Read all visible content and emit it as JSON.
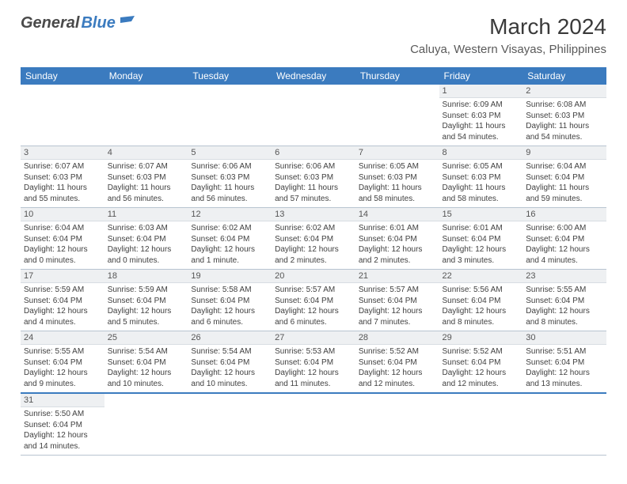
{
  "brand": {
    "part1": "General",
    "part2": "Blue"
  },
  "title": "March 2024",
  "location": "Caluya, Western Visayas, Philippines",
  "colors": {
    "header_bg": "#3b7bbf",
    "header_text": "#ffffff",
    "daynum_bg": "#eef0f2",
    "cell_border": "#b8c4d0",
    "text": "#3f3f3f",
    "title": "#3a3a3a"
  },
  "weekdays": [
    "Sunday",
    "Monday",
    "Tuesday",
    "Wednesday",
    "Thursday",
    "Friday",
    "Saturday"
  ],
  "weeks": [
    [
      null,
      null,
      null,
      null,
      null,
      {
        "d": "1",
        "sr": "6:09 AM",
        "ss": "6:03 PM",
        "dl": "11 hours and 54 minutes."
      },
      {
        "d": "2",
        "sr": "6:08 AM",
        "ss": "6:03 PM",
        "dl": "11 hours and 54 minutes."
      }
    ],
    [
      {
        "d": "3",
        "sr": "6:07 AM",
        "ss": "6:03 PM",
        "dl": "11 hours and 55 minutes."
      },
      {
        "d": "4",
        "sr": "6:07 AM",
        "ss": "6:03 PM",
        "dl": "11 hours and 56 minutes."
      },
      {
        "d": "5",
        "sr": "6:06 AM",
        "ss": "6:03 PM",
        "dl": "11 hours and 56 minutes."
      },
      {
        "d": "6",
        "sr": "6:06 AM",
        "ss": "6:03 PM",
        "dl": "11 hours and 57 minutes."
      },
      {
        "d": "7",
        "sr": "6:05 AM",
        "ss": "6:03 PM",
        "dl": "11 hours and 58 minutes."
      },
      {
        "d": "8",
        "sr": "6:05 AM",
        "ss": "6:03 PM",
        "dl": "11 hours and 58 minutes."
      },
      {
        "d": "9",
        "sr": "6:04 AM",
        "ss": "6:04 PM",
        "dl": "11 hours and 59 minutes."
      }
    ],
    [
      {
        "d": "10",
        "sr": "6:04 AM",
        "ss": "6:04 PM",
        "dl": "12 hours and 0 minutes."
      },
      {
        "d": "11",
        "sr": "6:03 AM",
        "ss": "6:04 PM",
        "dl": "12 hours and 0 minutes."
      },
      {
        "d": "12",
        "sr": "6:02 AM",
        "ss": "6:04 PM",
        "dl": "12 hours and 1 minute."
      },
      {
        "d": "13",
        "sr": "6:02 AM",
        "ss": "6:04 PM",
        "dl": "12 hours and 2 minutes."
      },
      {
        "d": "14",
        "sr": "6:01 AM",
        "ss": "6:04 PM",
        "dl": "12 hours and 2 minutes."
      },
      {
        "d": "15",
        "sr": "6:01 AM",
        "ss": "6:04 PM",
        "dl": "12 hours and 3 minutes."
      },
      {
        "d": "16",
        "sr": "6:00 AM",
        "ss": "6:04 PM",
        "dl": "12 hours and 4 minutes."
      }
    ],
    [
      {
        "d": "17",
        "sr": "5:59 AM",
        "ss": "6:04 PM",
        "dl": "12 hours and 4 minutes."
      },
      {
        "d": "18",
        "sr": "5:59 AM",
        "ss": "6:04 PM",
        "dl": "12 hours and 5 minutes."
      },
      {
        "d": "19",
        "sr": "5:58 AM",
        "ss": "6:04 PM",
        "dl": "12 hours and 6 minutes."
      },
      {
        "d": "20",
        "sr": "5:57 AM",
        "ss": "6:04 PM",
        "dl": "12 hours and 6 minutes."
      },
      {
        "d": "21",
        "sr": "5:57 AM",
        "ss": "6:04 PM",
        "dl": "12 hours and 7 minutes."
      },
      {
        "d": "22",
        "sr": "5:56 AM",
        "ss": "6:04 PM",
        "dl": "12 hours and 8 minutes."
      },
      {
        "d": "23",
        "sr": "5:55 AM",
        "ss": "6:04 PM",
        "dl": "12 hours and 8 minutes."
      }
    ],
    [
      {
        "d": "24",
        "sr": "5:55 AM",
        "ss": "6:04 PM",
        "dl": "12 hours and 9 minutes."
      },
      {
        "d": "25",
        "sr": "5:54 AM",
        "ss": "6:04 PM",
        "dl": "12 hours and 10 minutes."
      },
      {
        "d": "26",
        "sr": "5:54 AM",
        "ss": "6:04 PM",
        "dl": "12 hours and 10 minutes."
      },
      {
        "d": "27",
        "sr": "5:53 AM",
        "ss": "6:04 PM",
        "dl": "12 hours and 11 minutes."
      },
      {
        "d": "28",
        "sr": "5:52 AM",
        "ss": "6:04 PM",
        "dl": "12 hours and 12 minutes."
      },
      {
        "d": "29",
        "sr": "5:52 AM",
        "ss": "6:04 PM",
        "dl": "12 hours and 12 minutes."
      },
      {
        "d": "30",
        "sr": "5:51 AM",
        "ss": "6:04 PM",
        "dl": "12 hours and 13 minutes."
      }
    ],
    [
      {
        "d": "31",
        "sr": "5:50 AM",
        "ss": "6:04 PM",
        "dl": "12 hours and 14 minutes."
      },
      null,
      null,
      null,
      null,
      null,
      null
    ]
  ],
  "labels": {
    "sunrise": "Sunrise:",
    "sunset": "Sunset:",
    "daylight": "Daylight:"
  }
}
